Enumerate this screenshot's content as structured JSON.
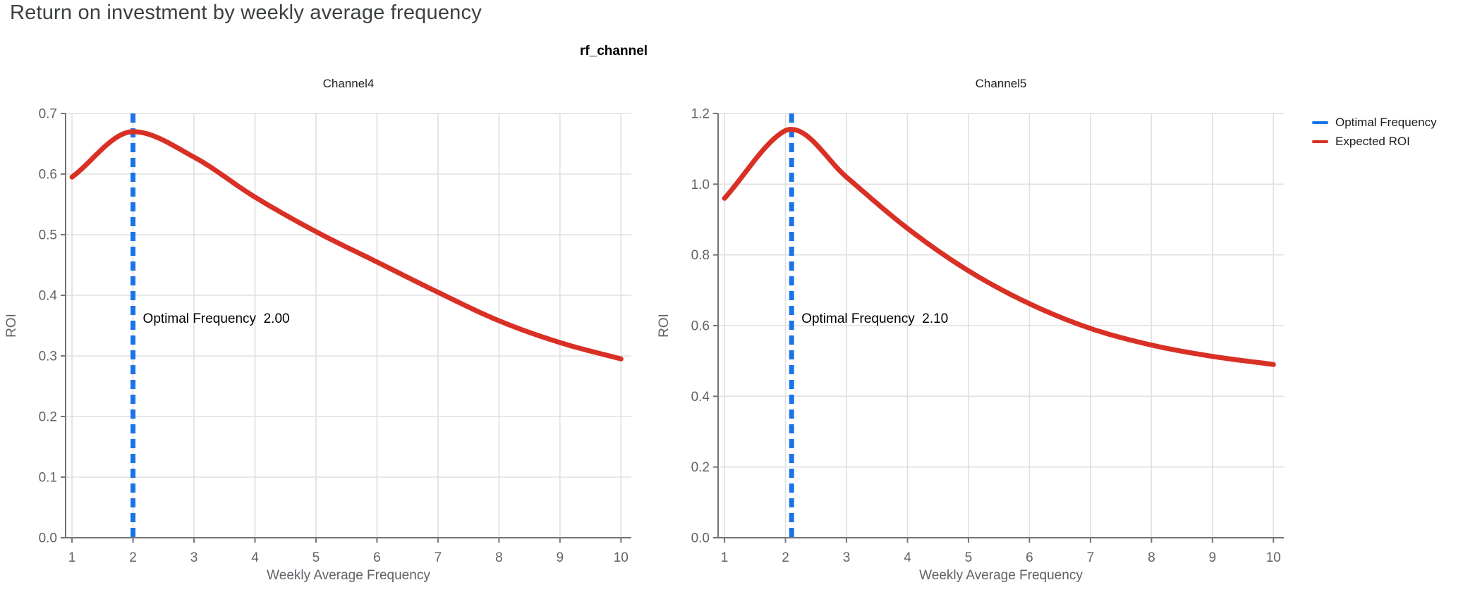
{
  "page": {
    "title": "Return on investment by weekly average frequency"
  },
  "figure": {
    "facet_variable": "rf_channel"
  },
  "legend": {
    "entries": [
      {
        "label": "Optimal Frequency",
        "color": "#1a73e8"
      },
      {
        "label": "Expected ROI",
        "color": "#d93025"
      }
    ]
  },
  "colors": {
    "curve": "#d93025",
    "optimal_line": "#1a73e8",
    "grid": "#e0e0e0",
    "axis": "#757575",
    "tick_text": "#5f6368",
    "title_text": "#3c4043",
    "facet_text": "#202124",
    "annotation_text": "#000000"
  },
  "chart_data": [
    {
      "type": "line",
      "title": "Channel4",
      "xlabel": "Weekly Average Frequency",
      "ylabel": "ROI",
      "xlim": [
        1,
        10
      ],
      "ylim": [
        0.0,
        0.7
      ],
      "xticks": [
        1,
        2,
        3,
        4,
        5,
        6,
        7,
        8,
        9,
        10
      ],
      "yticks": [
        "0.0",
        "0.1",
        "0.2",
        "0.3",
        "0.4",
        "0.5",
        "0.6",
        "0.7"
      ],
      "grid": true,
      "optimal_frequency": 2.0,
      "annotation_label": "Optimal Frequency",
      "annotation_value": "2.00",
      "series": [
        {
          "name": "Expected ROI",
          "x": [
            1,
            2,
            3,
            4,
            5,
            6,
            7,
            8,
            9,
            10
          ],
          "y": [
            0.595,
            0.67,
            0.628,
            0.562,
            0.505,
            0.455,
            0.405,
            0.358,
            0.322,
            0.295
          ]
        }
      ]
    },
    {
      "type": "line",
      "title": "Channel5",
      "xlabel": "Weekly Average Frequency",
      "ylabel": "ROI",
      "xlim": [
        1,
        10
      ],
      "ylim": [
        0.0,
        1.2
      ],
      "xticks": [
        1,
        2,
        3,
        4,
        5,
        6,
        7,
        8,
        9,
        10
      ],
      "yticks": [
        "0.0",
        "0.2",
        "0.4",
        "0.6",
        "0.8",
        "1.0",
        "1.2"
      ],
      "grid": true,
      "optimal_frequency": 2.1,
      "annotation_label": "Optimal Frequency",
      "annotation_value": "2.10",
      "series": [
        {
          "name": "Expected ROI",
          "x": [
            1,
            2,
            2.1,
            3,
            4,
            5,
            6,
            7,
            8,
            9,
            10
          ],
          "y": [
            0.96,
            1.152,
            1.155,
            1.02,
            0.875,
            0.755,
            0.662,
            0.592,
            0.545,
            0.513,
            0.49
          ]
        }
      ]
    }
  ]
}
